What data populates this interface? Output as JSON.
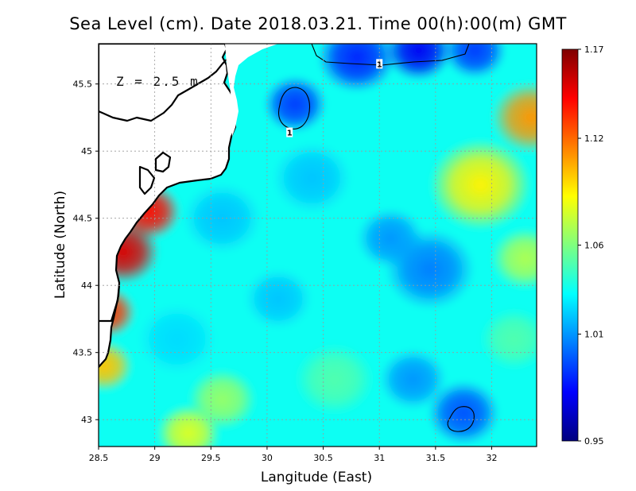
{
  "title": "Sea Level (cm). Date 2018.03.21. Time 00(h):00(m) GMT",
  "depth_label": "Z = 2.5 m",
  "chart_data": {
    "type": "heatmap",
    "title": "Sea Level (cm). Date 2018.03.21. Time 00(h):00(m) GMT",
    "xlabel": "Langitude (East)",
    "ylabel": "Latitude (North)",
    "xlim": [
      28.5,
      32.4
    ],
    "ylim": [
      42.8,
      45.8
    ],
    "xticks": [
      28.5,
      29,
      29.5,
      30,
      30.5,
      31,
      31.5,
      32
    ],
    "xtick_labels": [
      "28.5",
      "29",
      "29.5",
      "30",
      "30.5",
      "31",
      "31.5",
      "32"
    ],
    "yticks": [
      43,
      43.5,
      44,
      44.5,
      45,
      45.5
    ],
    "ytick_labels": [
      "43",
      "43.5",
      "44",
      "44.5",
      "45",
      "45.5"
    ],
    "grid": true,
    "colorbar": {
      "min": 0.95,
      "max": 1.17,
      "ticks": [
        0.95,
        1.01,
        1.06,
        1.12,
        1.17
      ],
      "tick_labels": [
        "0.95",
        "1.01",
        "1.06",
        "1.12",
        "1.17"
      ],
      "placement": "right"
    },
    "contour_levels": [
      1
    ],
    "contour_labels": [
      {
        "text": "1",
        "lon": 31.0,
        "lat": 45.65
      },
      {
        "text": "1",
        "lon": 30.2,
        "lat": 45.14
      }
    ],
    "field_features": [
      {
        "lon": 28.72,
        "lat": 44.25,
        "value": 1.15,
        "radius_deg": 0.32
      },
      {
        "lon": 28.95,
        "lat": 44.55,
        "value": 1.14,
        "radius_deg": 0.28
      },
      {
        "lon": 28.58,
        "lat": 43.8,
        "value": 1.13,
        "radius_deg": 0.25
      },
      {
        "lon": 28.55,
        "lat": 43.4,
        "value": 1.1,
        "radius_deg": 0.25
      },
      {
        "lon": 32.35,
        "lat": 45.25,
        "value": 1.11,
        "radius_deg": 0.35
      },
      {
        "lon": 31.9,
        "lat": 44.75,
        "value": 1.09,
        "radius_deg": 0.45
      },
      {
        "lon": 32.3,
        "lat": 44.2,
        "value": 1.07,
        "radius_deg": 0.3
      },
      {
        "lon": 29.3,
        "lat": 42.9,
        "value": 1.08,
        "radius_deg": 0.28
      },
      {
        "lon": 29.6,
        "lat": 43.15,
        "value": 1.065,
        "radius_deg": 0.3
      },
      {
        "lon": 30.25,
        "lat": 45.35,
        "value": 0.99,
        "radius_deg": 0.28
      },
      {
        "lon": 30.8,
        "lat": 45.7,
        "value": 0.985,
        "radius_deg": 0.35
      },
      {
        "lon": 31.35,
        "lat": 45.75,
        "value": 0.975,
        "radius_deg": 0.3
      },
      {
        "lon": 31.85,
        "lat": 45.75,
        "value": 0.99,
        "radius_deg": 0.28
      },
      {
        "lon": 31.45,
        "lat": 44.12,
        "value": 1.005,
        "radius_deg": 0.4
      },
      {
        "lon": 31.1,
        "lat": 44.35,
        "value": 1.01,
        "radius_deg": 0.3
      },
      {
        "lon": 31.75,
        "lat": 43.05,
        "value": 0.995,
        "radius_deg": 0.32
      },
      {
        "lon": 31.3,
        "lat": 43.3,
        "value": 1.01,
        "radius_deg": 0.3
      },
      {
        "lon": 29.6,
        "lat": 44.5,
        "value": 1.02,
        "radius_deg": 0.35
      },
      {
        "lon": 30.1,
        "lat": 43.9,
        "value": 1.02,
        "radius_deg": 0.3
      },
      {
        "lon": 29.2,
        "lat": 43.6,
        "value": 1.025,
        "radius_deg": 0.35
      },
      {
        "lon": 30.4,
        "lat": 44.8,
        "value": 1.02,
        "radius_deg": 0.35
      },
      {
        "lon": 30.6,
        "lat": 43.3,
        "value": 1.05,
        "radius_deg": 0.35
      },
      {
        "lon": 32.2,
        "lat": 43.6,
        "value": 1.05,
        "radius_deg": 0.3
      }
    ]
  },
  "colors": {
    "coastline": "#000000",
    "land": "#ffffff",
    "grid": "#9a9a9a",
    "colormap": [
      "#00007f",
      "#0000ff",
      "#007fff",
      "#00ffff",
      "#7fff7f",
      "#ffff00",
      "#ff7f00",
      "#ff0000",
      "#7f0000"
    ]
  }
}
